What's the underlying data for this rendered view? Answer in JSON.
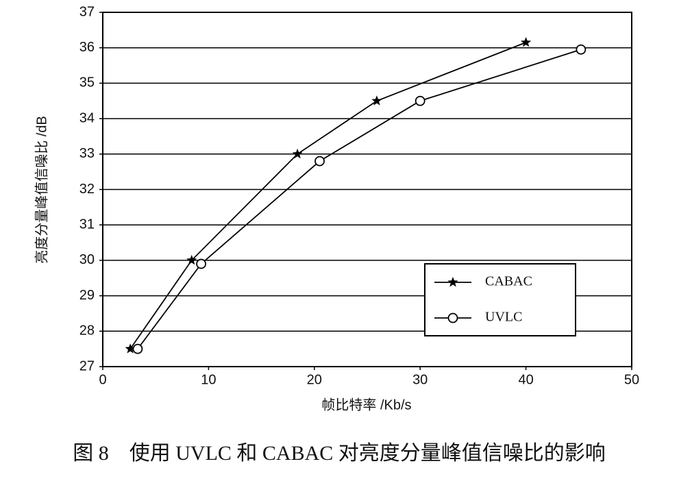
{
  "chart_data": {
    "type": "line",
    "xlabel": "帧比特率 /Kb/s",
    "ylabel": "亮度分量峰值信噪比 /dB",
    "caption": "图 8　使用 UVLC 和 CABAC 对亮度分量峰值信噪比的影响",
    "xlim": [
      0,
      50
    ],
    "xticks": [
      0,
      10,
      20,
      30,
      40,
      50
    ],
    "ylim": [
      27,
      37
    ],
    "yticks": [
      27,
      28,
      29,
      30,
      31,
      32,
      33,
      34,
      35,
      36,
      37
    ],
    "grid": true,
    "legend": "lower right",
    "series": [
      {
        "name": "CABAC",
        "color": "#000000",
        "marker": "star",
        "x": [
          2.6,
          8.4,
          18.4,
          25.9,
          40.0
        ],
        "values": [
          27.5,
          30.0,
          33.0,
          34.5,
          36.15
        ]
      },
      {
        "name": "UVLC",
        "color": "#000000",
        "marker": "circle",
        "x": [
          3.3,
          9.3,
          20.5,
          30.0,
          45.2
        ],
        "values": [
          27.5,
          29.9,
          32.8,
          34.5,
          35.95
        ]
      }
    ]
  }
}
